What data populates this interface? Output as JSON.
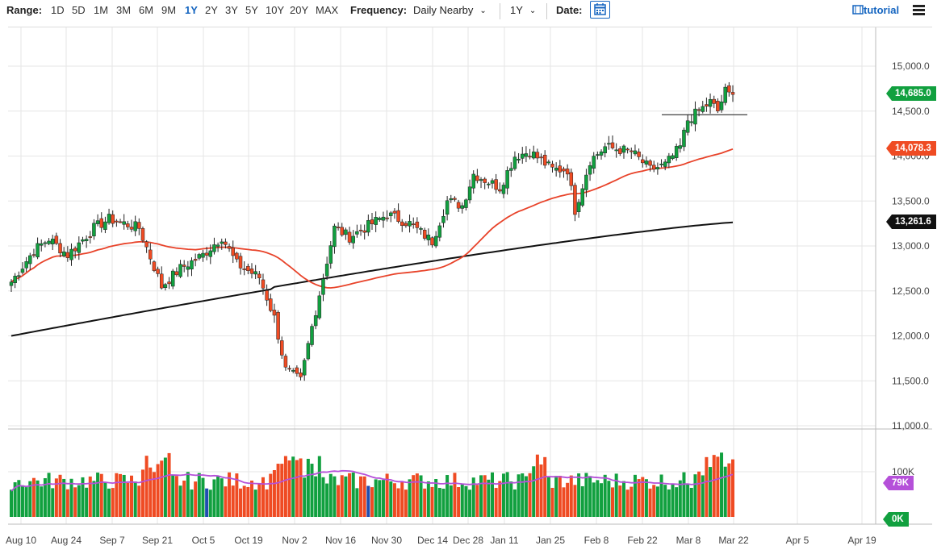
{
  "toolbar": {
    "range_label": "Range:",
    "ranges": [
      "1D",
      "5D",
      "1M",
      "3M",
      "6M",
      "9M",
      "1Y",
      "2Y",
      "3Y",
      "5Y",
      "10Y",
      "20Y",
      "MAX"
    ],
    "active_range": "1Y",
    "frequency_label": "Frequency:",
    "frequency_value": "Daily Nearby",
    "period_value": "1Y",
    "date_label": "Date:",
    "tutorial_label": "tutorial",
    "icons": [
      "chevron-down-icon",
      "calendar-icon",
      "tutorial-icon",
      "menu-icon"
    ]
  },
  "badges": {
    "last_price": "14,685.0",
    "ma_fast": "14,078.3",
    "ma_slow": "13,261.6",
    "volume_ma": "79K",
    "volume_zero": "0K"
  },
  "colors": {
    "up": "#11a03f",
    "down": "#ef4b23",
    "ma_fast": "#e8432a",
    "ma_slow": "#111111",
    "volume_ma": "#b550d9",
    "highlight_volume": "#1f4db0"
  },
  "chart_data": {
    "type": "candlestick",
    "price_axis": {
      "ticks": [
        "15,000.0",
        "14,500.0",
        "14,000.0",
        "13,500.0",
        "13,000.0",
        "12,500.0",
        "12,000.0",
        "11,500.0",
        "11,000.0"
      ],
      "ylim": [
        11000,
        15300
      ]
    },
    "volume_axis": {
      "ticks": [
        "100K"
      ]
    },
    "x_ticks": [
      "Aug 10",
      "Aug 24",
      "Sep 7",
      "Sep 21",
      "Oct 5",
      "Oct 19",
      "Nov 2",
      "Nov 16",
      "Nov 30",
      "Dec 14",
      "Dec 28",
      "Jan 11",
      "Jan 25",
      "Feb 8",
      "Feb 22",
      "Mar 8",
      "Mar 22",
      "Apr 5",
      "Apr 19"
    ],
    "anchors": [
      [
        0,
        12600
      ],
      [
        6,
        12950
      ],
      [
        10,
        13080
      ],
      [
        15,
        12900
      ],
      [
        22,
        13200
      ],
      [
        26,
        13300
      ],
      [
        34,
        13200
      ],
      [
        40,
        12550
      ],
      [
        45,
        12750
      ],
      [
        51,
        12900
      ],
      [
        56,
        13100
      ],
      [
        60,
        12800
      ],
      [
        66,
        12650
      ],
      [
        70,
        12200
      ],
      [
        73,
        11620
      ],
      [
        77,
        11500
      ],
      [
        80,
        12100
      ],
      [
        83,
        12650
      ],
      [
        86,
        13200
      ],
      [
        90,
        13100
      ],
      [
        100,
        13350
      ],
      [
        106,
        13250
      ],
      [
        112,
        13050
      ],
      [
        116,
        13500
      ],
      [
        120,
        13450
      ],
      [
        123,
        13800
      ],
      [
        130,
        13650
      ],
      [
        134,
        14000
      ],
      [
        138,
        14050
      ],
      [
        144,
        13850
      ],
      [
        148,
        13850
      ],
      [
        150,
        13400
      ],
      [
        154,
        13950
      ],
      [
        158,
        14100
      ],
      [
        165,
        14050
      ],
      [
        170,
        13850
      ],
      [
        174,
        13900
      ],
      [
        178,
        14100
      ],
      [
        180,
        14400
      ],
      [
        186,
        14600
      ],
      [
        188,
        14500
      ],
      [
        190,
        14720
      ],
      [
        192,
        14650
      ]
    ],
    "last_value": 14685.0,
    "moving_averages": [
      {
        "name": "fast",
        "final": 14078.3
      },
      {
        "name": "slow",
        "final": 13261.6
      }
    ],
    "volume_ma_final": "79K",
    "horizontal_line": 14460,
    "grid": true
  }
}
